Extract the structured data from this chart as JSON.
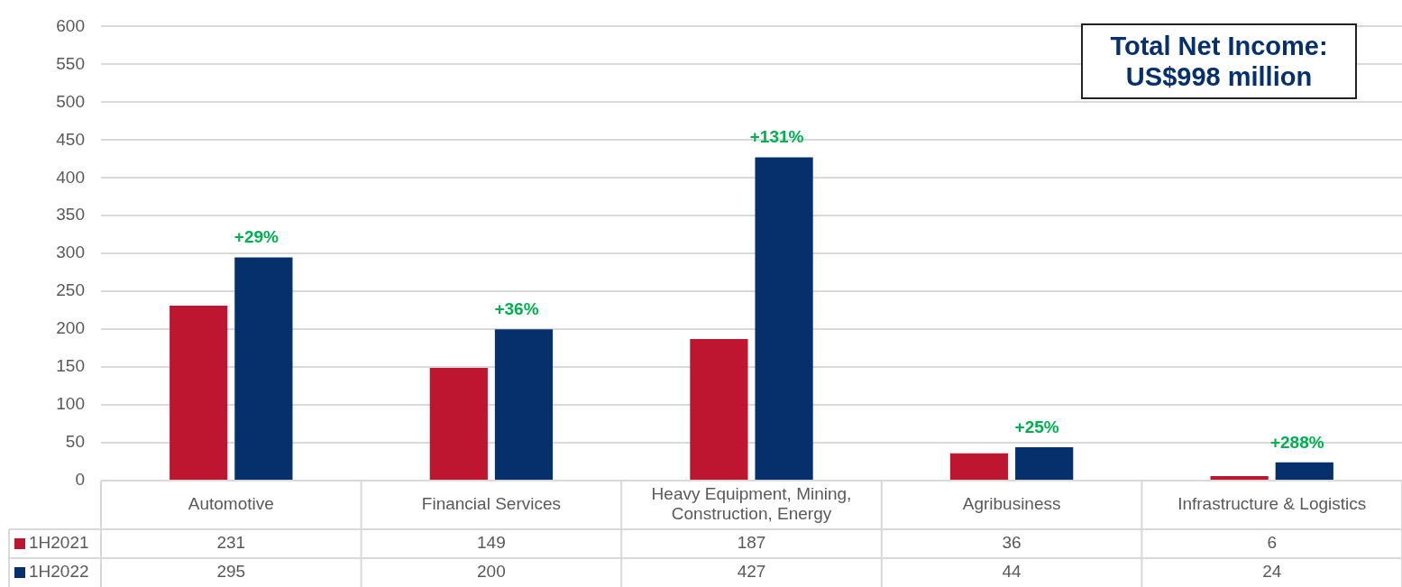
{
  "chart_data": {
    "type": "bar",
    "categories": [
      "Automotive",
      "Financial Services",
      "Heavy Equipment, Mining, Construction, Energy",
      "Agribusiness",
      "Infrastructure & Logistics"
    ],
    "series": [
      {
        "name": "1H2021",
        "color": "#be1631",
        "values": [
          231,
          149,
          187,
          36,
          6
        ]
      },
      {
        "name": "1H2022",
        "color": "#06306b",
        "values": [
          295,
          200,
          427,
          44,
          24
        ]
      }
    ],
    "ylim": [
      0,
      600
    ],
    "yticks": [
      0,
      50,
      100,
      150,
      200,
      250,
      300,
      350,
      400,
      450,
      500,
      550,
      600
    ],
    "grid": "y",
    "legend": "bottom",
    "data_labels": true,
    "annotations": [
      {
        "text": "+29%",
        "x": "Automotive",
        "y": 295
      },
      {
        "text": "+36%",
        "x": "Financial Services",
        "y": 200
      },
      {
        "text": "+131%",
        "x": "Heavy Equipment, Mining, Construction, Energy",
        "y": 427
      },
      {
        "text": "+25%",
        "x": "Agribusiness",
        "y": 44
      },
      {
        "text": "+288%",
        "x": "Infrastructure & Logistics",
        "y": 24
      },
      "Total Net Income: US$998 million"
    ]
  }
}
